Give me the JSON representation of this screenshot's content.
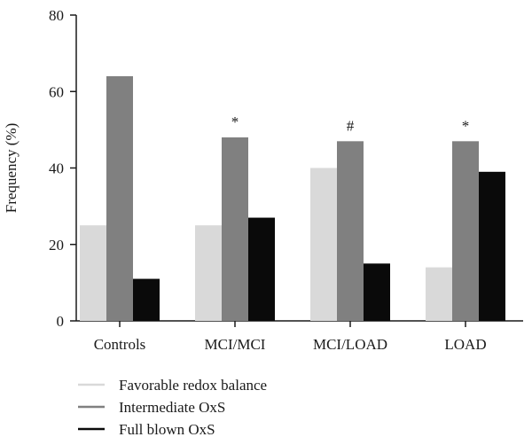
{
  "chart_data": {
    "type": "bar",
    "title": "",
    "xlabel": "",
    "ylabel": "Frequency (%)",
    "ylim": [
      0,
      80
    ],
    "yticks": [
      0,
      20,
      40,
      60,
      80
    ],
    "categories": [
      "Controls",
      "MCI/MCI",
      "MCI/LOAD",
      "LOAD"
    ],
    "series": [
      {
        "name": "Favorable redox balance",
        "color": "#d9d9d9",
        "values": [
          25,
          25,
          40,
          14
        ]
      },
      {
        "name": "Intermediate OxS",
        "color": "#808080",
        "values": [
          64,
          48,
          47,
          47
        ]
      },
      {
        "name": "Full blown OxS",
        "color": "#0a0a0a",
        "values": [
          11,
          27,
          15,
          39
        ]
      }
    ],
    "annotations": [
      {
        "category": "MCI/MCI",
        "series": "Intermediate OxS",
        "text": "*"
      },
      {
        "category": "MCI/LOAD",
        "series": "Intermediate OxS",
        "text": "#"
      },
      {
        "category": "LOAD",
        "series": "Intermediate OxS",
        "text": "*"
      }
    ],
    "grid": false,
    "legend_position": "bottom-left"
  }
}
